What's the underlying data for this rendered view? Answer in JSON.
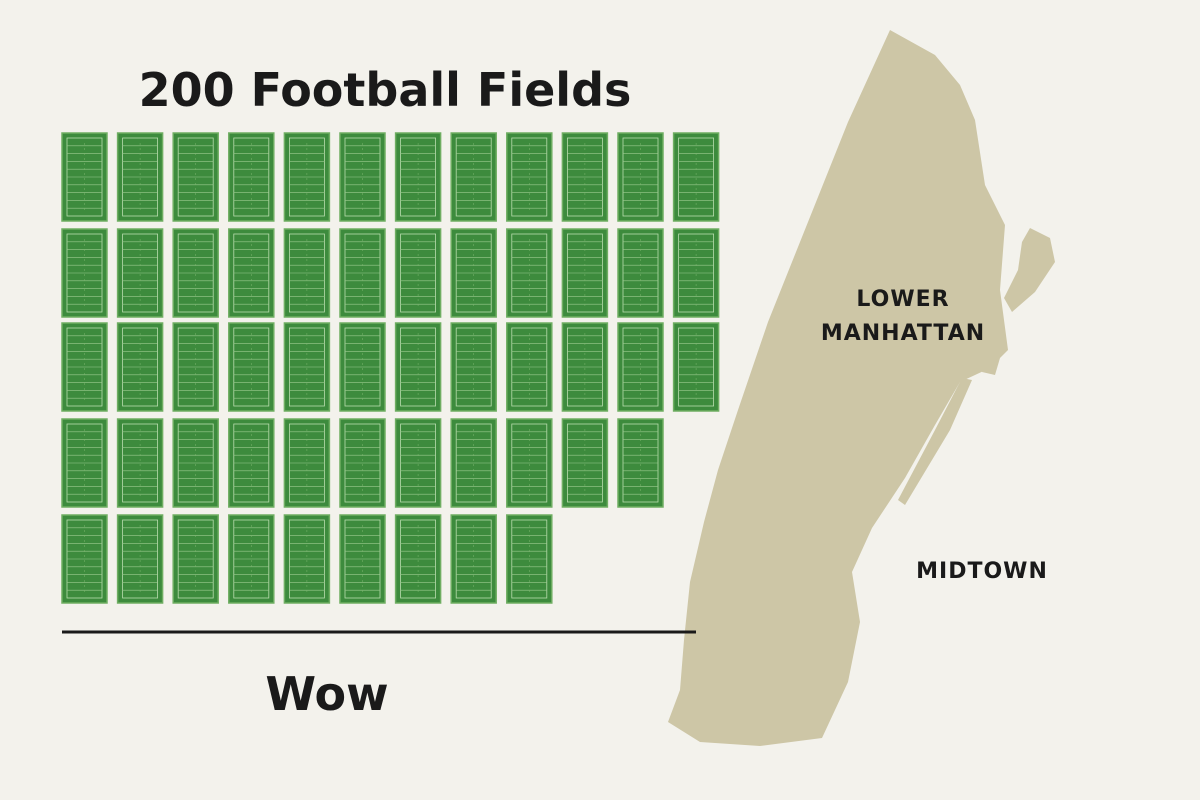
{
  "title": "200 Football Fields",
  "caption": "Wow",
  "map": {
    "labels": [
      {
        "lines": [
          "LOWER",
          "MANHATTAN"
        ]
      },
      {
        "lines": [
          "MIDTOWN"
        ]
      }
    ]
  }
}
